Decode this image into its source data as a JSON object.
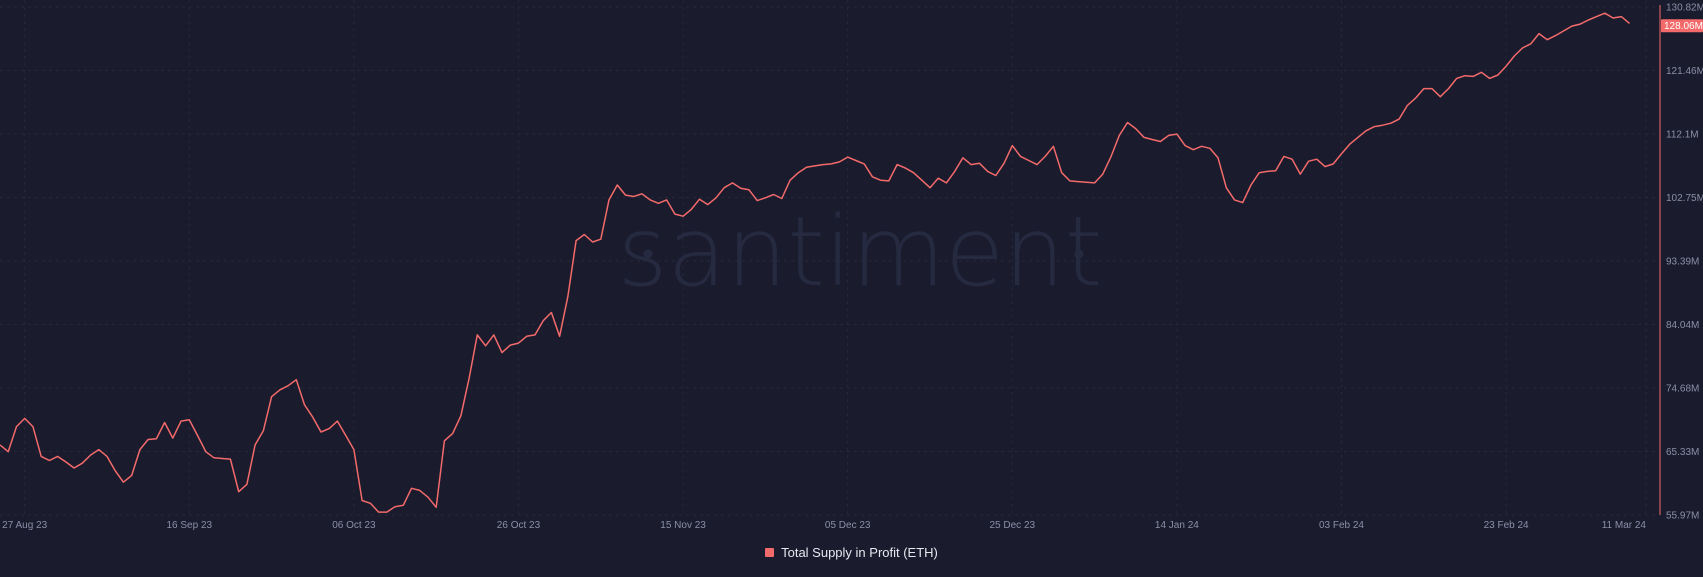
{
  "brand": {
    "watermark": "santiment"
  },
  "chart_data": {
    "type": "line",
    "title": "",
    "xlabel": "",
    "ylabel": "",
    "x_range": [
      "2023-08-24",
      "2024-03-11"
    ],
    "ylim": [
      55.97,
      130.82
    ],
    "y_unit": "M",
    "grid": true,
    "legend_position": "bottom-center",
    "x_ticks": [
      "27 Aug 23",
      "16 Sep 23",
      "06 Oct 23",
      "26 Oct 23",
      "15 Nov 23",
      "05 Dec 23",
      "25 Dec 23",
      "14 Jan 24",
      "03 Feb 24",
      "23 Feb 24",
      "11 Mar 24"
    ],
    "x_tick_dates": [
      "2023-08-27",
      "2023-09-16",
      "2023-10-06",
      "2023-10-26",
      "2023-11-15",
      "2023-12-05",
      "2023-12-25",
      "2024-01-14",
      "2024-02-03",
      "2024-02-23",
      "2024-03-11"
    ],
    "y_ticks": [
      "130.82M",
      "121.46M",
      "112.1M",
      "102.75M",
      "93.39M",
      "84.04M",
      "74.68M",
      "65.33M",
      "55.97M"
    ],
    "y_tick_values": [
      130.82,
      121.46,
      112.1,
      102.75,
      93.39,
      84.04,
      74.68,
      65.33,
      55.97
    ],
    "last_value_label": "128.06M",
    "series": [
      {
        "name": "Total Supply in Profit (ETH)",
        "color": "#f36a6a",
        "points": [
          [
            "2023-08-24",
            66.3
          ],
          [
            "2023-08-25",
            65.3
          ],
          [
            "2023-08-26",
            69.0
          ],
          [
            "2023-08-27",
            70.2
          ],
          [
            "2023-08-28",
            69.0
          ],
          [
            "2023-08-29",
            64.6
          ],
          [
            "2023-08-30",
            64.0
          ],
          [
            "2023-08-31",
            64.6
          ],
          [
            "2023-09-01",
            63.8
          ],
          [
            "2023-09-02",
            62.9
          ],
          [
            "2023-09-03",
            63.6
          ],
          [
            "2023-09-04",
            64.8
          ],
          [
            "2023-09-05",
            65.6
          ],
          [
            "2023-09-06",
            64.6
          ],
          [
            "2023-09-07",
            62.5
          ],
          [
            "2023-09-08",
            60.8
          ],
          [
            "2023-09-09",
            61.8
          ],
          [
            "2023-09-10",
            65.6
          ],
          [
            "2023-09-11",
            67.1
          ],
          [
            "2023-09-12",
            67.2
          ],
          [
            "2023-09-13",
            69.6
          ],
          [
            "2023-09-14",
            67.3
          ],
          [
            "2023-09-15",
            69.8
          ],
          [
            "2023-09-16",
            70.0
          ],
          [
            "2023-09-17",
            67.7
          ],
          [
            "2023-09-18",
            65.3
          ],
          [
            "2023-09-19",
            64.4
          ],
          [
            "2023-09-20",
            64.3
          ],
          [
            "2023-09-21",
            64.2
          ],
          [
            "2023-09-22",
            59.4
          ],
          [
            "2023-09-23",
            60.5
          ],
          [
            "2023-09-24",
            66.3
          ],
          [
            "2023-09-25",
            68.4
          ],
          [
            "2023-09-26",
            73.4
          ],
          [
            "2023-09-27",
            74.4
          ],
          [
            "2023-09-28",
            75.0
          ],
          [
            "2023-09-29",
            75.9
          ],
          [
            "2023-09-30",
            72.2
          ],
          [
            "2023-10-01",
            70.4
          ],
          [
            "2023-10-02",
            68.2
          ],
          [
            "2023-10-03",
            68.7
          ],
          [
            "2023-10-04",
            69.8
          ],
          [
            "2023-10-05",
            67.7
          ],
          [
            "2023-10-06",
            65.6
          ],
          [
            "2023-10-07",
            58.1
          ],
          [
            "2023-10-08",
            57.7
          ],
          [
            "2023-10-09",
            56.4
          ],
          [
            "2023-10-10",
            56.4
          ],
          [
            "2023-10-11",
            57.2
          ],
          [
            "2023-10-12",
            57.4
          ],
          [
            "2023-10-13",
            59.9
          ],
          [
            "2023-10-14",
            59.6
          ],
          [
            "2023-10-15",
            58.6
          ],
          [
            "2023-10-16",
            57.1
          ],
          [
            "2023-10-17",
            66.9
          ],
          [
            "2023-10-18",
            68.0
          ],
          [
            "2023-10-19",
            70.6
          ],
          [
            "2023-10-20",
            76.1
          ],
          [
            "2023-10-21",
            82.5
          ],
          [
            "2023-10-22",
            80.9
          ],
          [
            "2023-10-23",
            82.5
          ],
          [
            "2023-10-24",
            79.9
          ],
          [
            "2023-10-25",
            81.0
          ],
          [
            "2023-10-26",
            81.3
          ],
          [
            "2023-10-27",
            82.3
          ],
          [
            "2023-10-28",
            82.5
          ],
          [
            "2023-10-29",
            84.6
          ],
          [
            "2023-10-30",
            85.8
          ],
          [
            "2023-10-31",
            82.3
          ],
          [
            "2023-11-01",
            88.2
          ],
          [
            "2023-11-02",
            96.4
          ],
          [
            "2023-11-03",
            97.3
          ],
          [
            "2023-11-04",
            96.2
          ],
          [
            "2023-11-05",
            96.6
          ],
          [
            "2023-11-06",
            102.4
          ],
          [
            "2023-11-07",
            104.6
          ],
          [
            "2023-11-08",
            103.1
          ],
          [
            "2023-11-09",
            102.9
          ],
          [
            "2023-11-10",
            103.3
          ],
          [
            "2023-11-11",
            102.4
          ],
          [
            "2023-11-12",
            101.9
          ],
          [
            "2023-11-13",
            102.4
          ],
          [
            "2023-11-14",
            100.3
          ],
          [
            "2023-11-15",
            100.0
          ],
          [
            "2023-11-16",
            101.0
          ],
          [
            "2023-11-17",
            102.5
          ],
          [
            "2023-11-18",
            101.7
          ],
          [
            "2023-11-19",
            102.7
          ],
          [
            "2023-11-20",
            104.2
          ],
          [
            "2023-11-21",
            104.9
          ],
          [
            "2023-11-22",
            104.1
          ],
          [
            "2023-11-23",
            103.9
          ],
          [
            "2023-11-24",
            102.3
          ],
          [
            "2023-11-25",
            102.7
          ],
          [
            "2023-11-26",
            103.2
          ],
          [
            "2023-11-27",
            102.6
          ],
          [
            "2023-11-28",
            105.3
          ],
          [
            "2023-11-29",
            106.4
          ],
          [
            "2023-11-30",
            107.2
          ],
          [
            "2023-12-01",
            107.4
          ],
          [
            "2023-12-02",
            107.6
          ],
          [
            "2023-12-03",
            107.7
          ],
          [
            "2023-12-04",
            108.0
          ],
          [
            "2023-12-05",
            108.7
          ],
          [
            "2023-12-06",
            108.2
          ],
          [
            "2023-12-07",
            107.7
          ],
          [
            "2023-12-08",
            105.8
          ],
          [
            "2023-12-09",
            105.3
          ],
          [
            "2023-12-10",
            105.2
          ],
          [
            "2023-12-11",
            107.6
          ],
          [
            "2023-12-12",
            107.1
          ],
          [
            "2023-12-13",
            106.4
          ],
          [
            "2023-12-14",
            105.3
          ],
          [
            "2023-12-15",
            104.2
          ],
          [
            "2023-12-16",
            105.6
          ],
          [
            "2023-12-17",
            104.9
          ],
          [
            "2023-12-18",
            106.6
          ],
          [
            "2023-12-19",
            108.6
          ],
          [
            "2023-12-20",
            107.6
          ],
          [
            "2023-12-21",
            107.8
          ],
          [
            "2023-12-22",
            106.6
          ],
          [
            "2023-12-23",
            106.0
          ],
          [
            "2023-12-24",
            107.8
          ],
          [
            "2023-12-25",
            110.4
          ],
          [
            "2023-12-26",
            108.8
          ],
          [
            "2023-12-27",
            108.2
          ],
          [
            "2023-12-28",
            107.6
          ],
          [
            "2023-12-29",
            108.8
          ],
          [
            "2023-12-30",
            110.3
          ],
          [
            "2023-12-31",
            106.4
          ],
          [
            "2024-01-01",
            105.2
          ],
          [
            "2024-01-02",
            105.1
          ],
          [
            "2024-01-03",
            105.0
          ],
          [
            "2024-01-04",
            104.9
          ],
          [
            "2024-01-05",
            106.2
          ],
          [
            "2024-01-06",
            108.8
          ],
          [
            "2024-01-07",
            111.9
          ],
          [
            "2024-01-08",
            113.8
          ],
          [
            "2024-01-09",
            112.9
          ],
          [
            "2024-01-10",
            111.6
          ],
          [
            "2024-01-11",
            111.3
          ],
          [
            "2024-01-12",
            111.0
          ],
          [
            "2024-01-13",
            111.9
          ],
          [
            "2024-01-14",
            112.1
          ],
          [
            "2024-01-15",
            110.4
          ],
          [
            "2024-01-16",
            109.8
          ],
          [
            "2024-01-17",
            110.3
          ],
          [
            "2024-01-18",
            110.0
          ],
          [
            "2024-01-19",
            108.6
          ],
          [
            "2024-01-20",
            104.2
          ],
          [
            "2024-01-21",
            102.4
          ],
          [
            "2024-01-22",
            102.0
          ],
          [
            "2024-01-23",
            104.6
          ],
          [
            "2024-01-24",
            106.4
          ],
          [
            "2024-01-25",
            106.6
          ],
          [
            "2024-01-26",
            106.7
          ],
          [
            "2024-01-27",
            108.8
          ],
          [
            "2024-01-28",
            108.4
          ],
          [
            "2024-01-29",
            106.2
          ],
          [
            "2024-01-30",
            108.1
          ],
          [
            "2024-01-31",
            108.4
          ],
          [
            "2024-02-01",
            107.3
          ],
          [
            "2024-02-02",
            107.7
          ],
          [
            "2024-02-03",
            109.2
          ],
          [
            "2024-02-04",
            110.6
          ],
          [
            "2024-02-05",
            111.6
          ],
          [
            "2024-02-06",
            112.6
          ],
          [
            "2024-02-07",
            113.2
          ],
          [
            "2024-02-08",
            113.4
          ],
          [
            "2024-02-09",
            113.7
          ],
          [
            "2024-02-10",
            114.3
          ],
          [
            "2024-02-11",
            116.3
          ],
          [
            "2024-02-12",
            117.4
          ],
          [
            "2024-02-13",
            118.8
          ],
          [
            "2024-02-14",
            118.8
          ],
          [
            "2024-02-15",
            117.6
          ],
          [
            "2024-02-16",
            118.8
          ],
          [
            "2024-02-17",
            120.3
          ],
          [
            "2024-02-18",
            120.7
          ],
          [
            "2024-02-19",
            120.6
          ],
          [
            "2024-02-20",
            121.2
          ],
          [
            "2024-02-21",
            120.3
          ],
          [
            "2024-02-22",
            120.8
          ],
          [
            "2024-02-23",
            122.1
          ],
          [
            "2024-02-24",
            123.6
          ],
          [
            "2024-02-25",
            124.8
          ],
          [
            "2024-02-26",
            125.4
          ],
          [
            "2024-02-27",
            126.9
          ],
          [
            "2024-02-28",
            126.0
          ],
          [
            "2024-02-29",
            126.6
          ],
          [
            "2024-03-01",
            127.3
          ],
          [
            "2024-03-02",
            128.0
          ],
          [
            "2024-03-03",
            128.3
          ],
          [
            "2024-03-04",
            128.9
          ],
          [
            "2024-03-05",
            129.4
          ],
          [
            "2024-03-06",
            129.9
          ],
          [
            "2024-03-07",
            129.2
          ],
          [
            "2024-03-08",
            129.4
          ],
          [
            "2024-03-09",
            128.4
          ]
        ]
      }
    ]
  }
}
